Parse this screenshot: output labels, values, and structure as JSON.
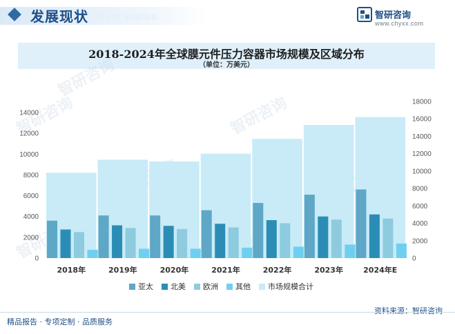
{
  "header": {
    "title": "发展现状",
    "watermark": "ment status",
    "brand_name": "智研咨询",
    "brand_url": "www.chyxx.com"
  },
  "footer": {
    "tagline": "精品报告 · 专项定制 · 品质服务",
    "source": "资料来源：智研咨询"
  },
  "watermarks": [
    "智研咨询",
    "智研咨询",
    "智研咨询",
    "智研咨询",
    "智研咨询",
    "智研咨询",
    "智研咨询"
  ],
  "chart_data": {
    "type": "bar",
    "title": "2018-2024年全球膜元件压力容器市场规模及区域分布",
    "subtitle": "（单位：万美元）",
    "categories": [
      "2018年",
      "2019年",
      "2020年",
      "2021年",
      "2022年",
      "2023年",
      "2024年E"
    ],
    "left_axis": {
      "min": 0,
      "max": 14000,
      "ticks": [
        0,
        2000,
        4000,
        6000,
        8000,
        10000,
        12000,
        14000
      ]
    },
    "right_axis": {
      "min": 0,
      "max": 18000,
      "ticks": [
        0,
        2000,
        4000,
        6000,
        8000,
        10000,
        12000,
        14000,
        16000,
        18000
      ]
    },
    "series": [
      {
        "name": "亚太",
        "axis": "left",
        "color": "#5fa7c7",
        "values": [
          3600,
          4100,
          4100,
          4600,
          5300,
          6100,
          6600
        ]
      },
      {
        "name": "北美",
        "axis": "left",
        "color": "#2b8db5",
        "values": [
          2750,
          3150,
          3100,
          3300,
          3650,
          4000,
          4200
        ]
      },
      {
        "name": "欧洲",
        "axis": "left",
        "color": "#8ecbdf",
        "values": [
          2500,
          2900,
          2800,
          2950,
          3350,
          3700,
          3800
        ]
      },
      {
        "name": "其他",
        "axis": "left",
        "color": "#6fcff0",
        "values": [
          800,
          900,
          900,
          1000,
          1100,
          1300,
          1400
        ]
      },
      {
        "name": "市场规模合计",
        "axis": "right",
        "color": "#c8ebf7",
        "values": [
          9800,
          11300,
          11100,
          12000,
          13700,
          15300,
          16200
        ]
      }
    ],
    "legend_position": "bottom",
    "grid": false
  }
}
